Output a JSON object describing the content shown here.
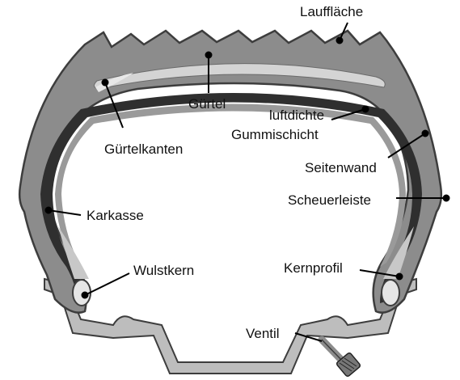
{
  "diagram": {
    "labels": {
      "lauffläche": "Lauffläche",
      "guertel": "Gürtel",
      "luftdichte_1": "luftdichte",
      "luftdichte_2": "Gummischicht",
      "guertelkanten": "Gürtelkanten",
      "seitenwand": "Seitenwand",
      "karkasse": "Karkasse",
      "scheuerleiste": "Scheuerleiste",
      "wulstkern": "Wulstkern",
      "kernprofil": "Kernprofil",
      "ventil": "Ventil"
    },
    "colors": {
      "rubber": "#8c8c8c",
      "rubber_outline": "#3d3d3d",
      "belt": "#d4d4d4",
      "inner_liner": "#3a3a3a",
      "rim": "#bdbdbd",
      "bead": "#e6e6e6",
      "leader": "#000000"
    }
  }
}
